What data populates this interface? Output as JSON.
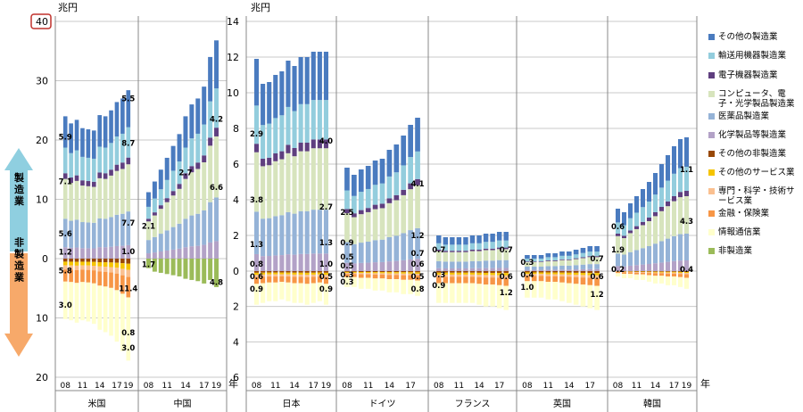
{
  "chart_data": {
    "type": "bar",
    "stacked": true,
    "panels": [
      {
        "id": "us-cn",
        "yunit": "兆円",
        "yticks_up": [
          "40",
          "30",
          "20",
          "10"
        ],
        "yticks_zero": "0",
        "yticks_down": [
          "10",
          "20"
        ],
        "ylim_up": 40,
        "ylim_down": 20,
        "year_axis_label": "",
        "countries": [
          {
            "name": "米国",
            "year_labels": [
              "08",
              "11",
              "14",
              "17",
              "19"
            ],
            "up_totals": [
              24.0,
              22.8,
              23.4,
              22.0,
              21.8,
              21.6,
              24.2,
              24.0,
              25.0,
              26.4,
              27.0,
              28.4
            ],
            "down_totals": [
              10.2,
              10.4,
              10.8,
              10.4,
              10.6,
              11.0,
              12.0,
              12.4,
              13.0,
              14.0,
              15.6,
              17.2
            ],
            "labels_up": [
              {
                "text": "5.5",
                "pos": "last",
                "y": 27.0
              },
              {
                "text": "8.7",
                "pos": "last",
                "y": 19.5
              },
              {
                "text": "7.7",
                "pos": "last",
                "y": 6.0
              },
              {
                "text": "1.0",
                "pos": "last",
                "y": 1.2
              },
              {
                "text": "5.9",
                "pos": "first",
                "y": 20.5
              },
              {
                "text": "7.1",
                "pos": "first",
                "y": 13.0
              },
              {
                "text": "5.6",
                "pos": "first",
                "y": 4.2
              },
              {
                "text": "1.2",
                "pos": "first",
                "y": 1.1
              }
            ],
            "labels_down": [
              {
                "text": "5.8",
                "pos": "first",
                "y": -2.0
              },
              {
                "text": "3.0",
                "pos": "first",
                "y": -7.8
              },
              {
                "text": "11.4",
                "pos": "last",
                "y": -5.0
              },
              {
                "text": "0.8",
                "pos": "last",
                "y": -12.5
              },
              {
                "text": "3.0",
                "pos": "last",
                "y": -15.0
              }
            ]
          },
          {
            "name": "中国",
            "year_labels": [
              "08",
              "11",
              "14",
              "17",
              "19"
            ],
            "up_totals": [
              11.2,
              13.0,
              15.0,
              17.0,
              19.0,
              21.0,
              24.0,
              26.0,
              27.0,
              29.0,
              34.0,
              36.8
            ],
            "down_totals": [
              1.6,
              2.2,
              2.4,
              2.6,
              2.8,
              3.0,
              3.4,
              3.6,
              3.8,
              4.2,
              3.6,
              4.8
            ],
            "labels_up": [
              {
                "text": "2.1",
                "pos": "first",
                "y": 5.5
              },
              {
                "text": "2.7",
                "pos": "mid",
                "y": 14.5
              },
              {
                "text": "4.2",
                "pos": "last",
                "y": 23.5
              },
              {
                "text": "6.6",
                "pos": "last",
                "y": 12.0
              }
            ],
            "labels_down": [
              {
                "text": "1.7",
                "pos": "first",
                "y": -1.0
              },
              {
                "text": "4.8",
                "pos": "last",
                "y": -4.0
              }
            ]
          }
        ]
      },
      {
        "id": "others",
        "yunit": "兆円",
        "yticks_up": [
          "14",
          "12",
          "10",
          "8",
          "6",
          "4",
          "2"
        ],
        "yticks_zero": "0",
        "yticks_down": [
          "2",
          "4",
          "6"
        ],
        "ylim_up": 14,
        "ylim_down": 6,
        "year_axis_label": "年",
        "countries": [
          {
            "name": "日本",
            "year_labels": [
              "08",
              "11",
              "14",
              "17",
              "19"
            ],
            "up_totals": [
              11.9,
              10.5,
              10.6,
              11.0,
              11.2,
              11.8,
              11.5,
              12.0,
              12.0,
              12.3,
              12.3,
              12.3
            ],
            "down_totals": [
              1.9,
              1.8,
              1.7,
              1.7,
              1.6,
              1.7,
              1.8,
              1.8,
              1.9,
              1.8,
              1.7,
              1.9
            ],
            "labels_up": [
              {
                "text": "2.9",
                "pos": "first",
                "y": 7.7
              },
              {
                "text": "3.8",
                "pos": "first",
                "y": 4.0
              },
              {
                "text": "1.3",
                "pos": "first",
                "y": 1.5
              },
              {
                "text": "0.8",
                "pos": "first",
                "y": 0.4
              },
              {
                "text": "4.0",
                "pos": "last",
                "y": 7.3
              },
              {
                "text": "2.7",
                "pos": "last",
                "y": 3.6
              },
              {
                "text": "1.3",
                "pos": "last",
                "y": 1.6
              },
              {
                "text": "1.0",
                "pos": "last",
                "y": 0.4
              }
            ],
            "labels_down": [
              {
                "text": "0.6",
                "pos": "first",
                "y": -0.3
              },
              {
                "text": "0.9",
                "pos": "first",
                "y": -1.0
              },
              {
                "text": "0.5",
                "pos": "last",
                "y": -0.3
              },
              {
                "text": "0.9",
                "pos": "last",
                "y": -1.0
              }
            ]
          },
          {
            "name": "ドイツ",
            "year_labels": [
              "08",
              "11",
              "14",
              "17"
            ],
            "up_totals": [
              5.8,
              5.4,
              5.7,
              5.9,
              6.2,
              6.3,
              6.8,
              7.1,
              7.6,
              8.2,
              8.6
            ],
            "down_totals": [
              0.9,
              0.9,
              1.0,
              1.0,
              1.1,
              1.1,
              1.2,
              1.2,
              1.3,
              1.3,
              1.4
            ],
            "labels_up": [
              {
                "text": "2.5",
                "pos": "first",
                "y": 3.3
              },
              {
                "text": "0.9",
                "pos": "first",
                "y": 1.6
              },
              {
                "text": "0.5",
                "pos": "first",
                "y": 0.8
              },
              {
                "text": "0.5",
                "pos": "first",
                "y": 0.3
              },
              {
                "text": "4.1",
                "pos": "last",
                "y": 4.9
              },
              {
                "text": "1.2",
                "pos": "last",
                "y": 2.0
              },
              {
                "text": "0.7",
                "pos": "last",
                "y": 1.0
              },
              {
                "text": "0.6",
                "pos": "last",
                "y": 0.4
              }
            ],
            "labels_down": [
              {
                "text": "0.3",
                "pos": "first",
                "y": -0.2
              },
              {
                "text": "0.3",
                "pos": "first",
                "y": -0.6
              },
              {
                "text": "0.5",
                "pos": "last",
                "y": -0.3
              },
              {
                "text": "0.8",
                "pos": "last",
                "y": -1.0
              }
            ]
          },
          {
            "name": "フランス",
            "year_labels": [
              "08",
              "11",
              "14",
              "17"
            ],
            "up_totals": [
              2.0,
              1.9,
              1.9,
              1.9,
              1.9,
              2.0,
              2.0,
              2.1,
              2.1,
              2.2,
              2.2
            ],
            "down_totals": [
              1.8,
              1.8,
              1.8,
              1.8,
              1.8,
              1.8,
              1.9,
              2.0,
              2.0,
              2.1,
              2.2
            ],
            "labels_up": [
              {
                "text": "0.7",
                "pos": "first",
                "y": 1.2
              },
              {
                "text": "0.7",
                "pos": "last",
                "y": 1.2
              }
            ],
            "labels_down": [
              {
                "text": "0.3",
                "pos": "first",
                "y": -0.2
              },
              {
                "text": "0.9",
                "pos": "first",
                "y": -0.8
              },
              {
                "text": "0.6",
                "pos": "last",
                "y": -0.3
              },
              {
                "text": "1.2",
                "pos": "last",
                "y": -1.2
              }
            ]
          },
          {
            "name": "英国",
            "year_labels": [
              "08",
              "11",
              "14",
              "17"
            ],
            "up_totals": [
              0.9,
              0.9,
              0.9,
              1.0,
              1.0,
              1.1,
              1.1,
              1.2,
              1.3,
              1.4,
              1.4
            ],
            "down_totals": [
              1.5,
              1.5,
              1.5,
              1.6,
              1.6,
              1.7,
              1.8,
              1.9,
              2.0,
              2.1,
              2.2
            ],
            "labels_up": [
              {
                "text": "0.3",
                "pos": "first",
                "y": 0.5
              },
              {
                "text": "0.7",
                "pos": "last",
                "y": 0.7
              }
            ],
            "labels_down": [
              {
                "text": "0.4",
                "pos": "first",
                "y": -0.2
              },
              {
                "text": "1.0",
                "pos": "first",
                "y": -0.9
              },
              {
                "text": "0.6",
                "pos": "last",
                "y": -0.3
              },
              {
                "text": "1.2",
                "pos": "last",
                "y": -1.3
              }
            ]
          },
          {
            "name": "韓国",
            "year_labels": [
              "08",
              "11",
              "14",
              "17",
              "19"
            ],
            "up_totals": [
              3.5,
              3.3,
              3.8,
              4.2,
              4.6,
              5.0,
              5.5,
              6.0,
              6.5,
              7.0,
              7.4,
              7.5
            ],
            "down_totals": [
              0.3,
              0.4,
              0.4,
              0.5,
              0.5,
              0.6,
              0.7,
              0.7,
              0.8,
              0.8,
              0.9,
              1.0
            ],
            "labels_up": [
              {
                "text": "0.6",
                "pos": "first",
                "y": 2.5
              },
              {
                "text": "1.9",
                "pos": "first",
                "y": 1.2
              },
              {
                "text": "0.2",
                "pos": "first",
                "y": 0.1
              },
              {
                "text": "1.1",
                "pos": "last",
                "y": 5.7
              },
              {
                "text": "4.3",
                "pos": "last",
                "y": 2.8
              },
              {
                "text": "0.4",
                "pos": "last",
                "y": 0.1
              }
            ],
            "labels_down": []
          }
        ]
      }
    ],
    "up_segment_shares": {
      "その他の製造業": 0.22,
      "輸送用機器製造業": 0.18,
      "電子機器製造業": 0.04,
      "コンピュータ、電子・光学製品製造業": 0.28,
      "医薬品製造業": 0.2,
      "化学製品等製造業": 0.08
    },
    "down_segment_shares": {
      "その他の非製造業": 0.05,
      "その他のサービス業": 0.06,
      "専門・科学・技術サービス業": 0.07,
      "金融・保険業": 0.2,
      "情報通信業": 0.62
    },
    "legend": [
      {
        "label": "その他の製造業",
        "color": "#4a7bbf"
      },
      {
        "label": "輸送用機器製造業",
        "color": "#93cddd"
      },
      {
        "label": "電子機器製造業",
        "color": "#5f3f7f"
      },
      {
        "label": "コンピュータ、電子・光学製品製造業",
        "color": "#d7e4bd"
      },
      {
        "label": "医薬品製造業",
        "color": "#95b3d7"
      },
      {
        "label": "化学製品等製造業",
        "color": "#b3a2c7"
      },
      {
        "label": "その他の非製造業",
        "color": "#984807"
      },
      {
        "label": "その他のサービス業",
        "color": "#f5c400"
      },
      {
        "label": "専門・科学・技術サービス業",
        "color": "#fac090"
      },
      {
        "label": "金融・保険業",
        "color": "#f79646"
      },
      {
        "label": "情報通信業",
        "color": "#ffffcc"
      },
      {
        "label": "非製造業",
        "color": "#9bbb59"
      }
    ]
  },
  "side_arrows": {
    "up_label": "製造業",
    "down_label": "非製造業",
    "up_color": "#8fcfe0",
    "down_color": "#f7a96a"
  },
  "highlight": {
    "tick": "40",
    "color": "#c0312b"
  }
}
